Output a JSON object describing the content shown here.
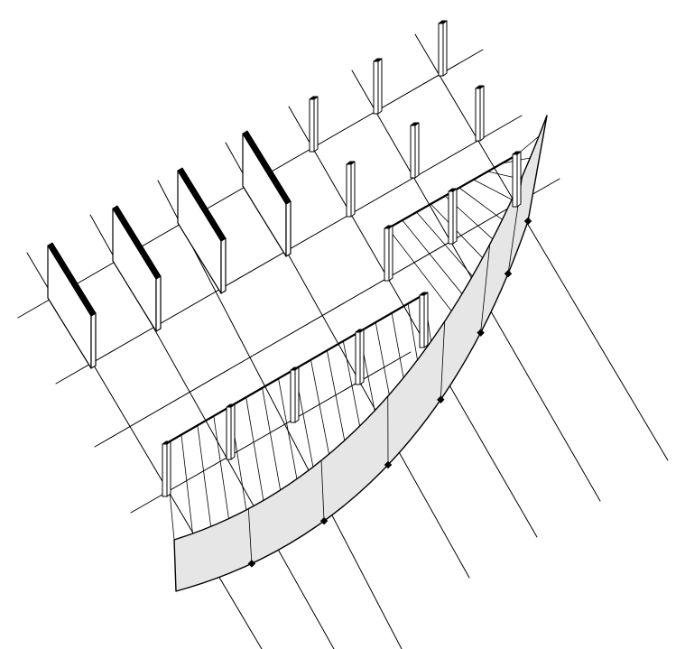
{
  "diagram": {
    "kind": "isometric structural drawing",
    "colors": {
      "background": "#ffffff",
      "ink": "#000000",
      "panel_fill": "#e6e6e6",
      "element_face": "#ffffff",
      "wall_top": "#000000"
    },
    "counts": {
      "grid_lines_downright": 9,
      "grid_lines_upright": 5,
      "wall_panels": 4,
      "free_columns": 6,
      "front_frame_columns": 5,
      "back_frame_columns": 3,
      "curved_panel_nodes": 7
    }
  }
}
